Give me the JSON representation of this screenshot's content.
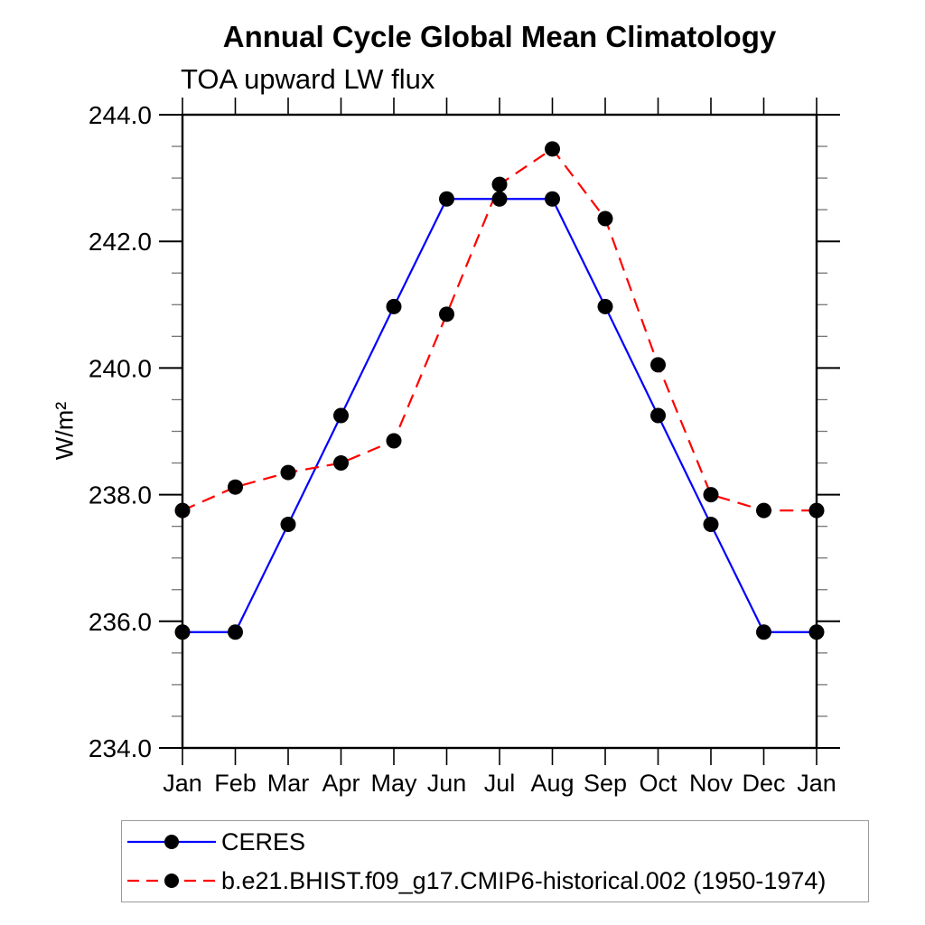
{
  "header": {
    "title": "Annual Cycle Global Mean Climatology",
    "subtitle": "TOA upward LW flux"
  },
  "chart_data": {
    "type": "line",
    "title": "Annual Cycle Global Mean Climatology",
    "subtitle": "TOA upward LW flux",
    "ylabel": "W/m²",
    "xlabel": "",
    "x_tick_labels": [
      "Jan",
      "Feb",
      "Mar",
      "Apr",
      "May",
      "Jun",
      "Jul",
      "Aug",
      "Sep",
      "Oct",
      "Nov",
      "Dec",
      "Jan"
    ],
    "ylim": [
      234.0,
      244.0
    ],
    "y_major_ticks": [
      234.0,
      236.0,
      238.0,
      240.0,
      242.0,
      244.0
    ],
    "y_minor_step": 0.5,
    "grid": false,
    "axis_mirror_ticks": true,
    "legend_position": "bottom-left-box",
    "series": [
      {
        "name": "CERES",
        "color": "#0000ff",
        "style": "solid",
        "marker": "filled-circle",
        "marker_color": "#000000",
        "values": [
          235.83,
          235.83,
          237.53,
          239.25,
          240.97,
          242.67,
          242.67,
          242.67,
          240.97,
          239.25,
          237.53,
          235.83,
          235.83
        ]
      },
      {
        "name": "b.e21.BHIST.f09_g17.CMIP6-historical.002 (1950-1974)",
        "color": "#ff0000",
        "style": "dashed",
        "marker": "filled-circle",
        "marker_color": "#000000",
        "values": [
          237.75,
          238.12,
          238.35,
          238.5,
          238.85,
          240.85,
          242.9,
          243.46,
          242.36,
          240.05,
          238.0,
          237.75,
          237.75
        ]
      }
    ]
  }
}
